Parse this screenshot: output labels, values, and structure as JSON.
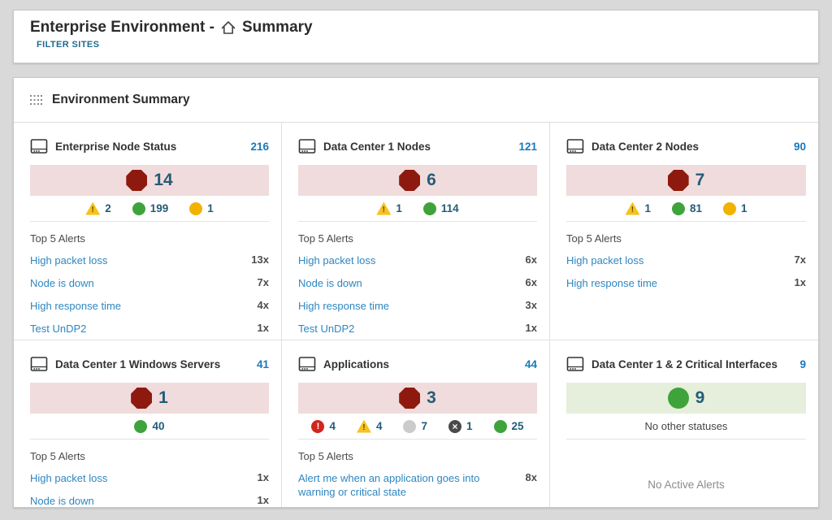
{
  "colors": {
    "accent_teal": "#1f6a8e",
    "total_blue": "#1878bc",
    "count_blue": "#235c77",
    "link_blue": "#2e86c1",
    "critical_red": "#8e1a0f",
    "band_pink": "#f0dcdc",
    "band_green": "#e5efdb",
    "status_green": "#3fa33c",
    "status_yellow": "#f2b200",
    "triangle_yellow": "#f6c21d",
    "status_red": "#d2261c",
    "status_gray": "#cbcbcb",
    "status_dark": "#4a4a4a"
  },
  "header": {
    "title_prefix": "Enterprise Environment -",
    "title_suffix": "Summary",
    "filter_sites_label": "FILTER SITES"
  },
  "panel": {
    "title": "Environment Summary"
  },
  "cards": [
    {
      "title": "Enterprise Node Status",
      "total": "216",
      "band_style": "critical",
      "main_status": {
        "icon": "octagon-down-icon",
        "count": "14"
      },
      "sub_statuses": [
        {
          "icon": "triangle-warning-icon",
          "count": "2"
        },
        {
          "icon": "circle-up-icon",
          "count": "199"
        },
        {
          "icon": "circle-external-icon",
          "count": "1"
        }
      ],
      "sub_status_text": "",
      "alerts_title": "Top 5 Alerts",
      "alerts": [
        {
          "label": "High packet loss",
          "count": "13x"
        },
        {
          "label": "Node is down",
          "count": "7x"
        },
        {
          "label": "High response time",
          "count": "4x"
        },
        {
          "label": "Test UnDP2",
          "count": "1x"
        }
      ],
      "footer_text": ""
    },
    {
      "title": "Data Center 1 Nodes",
      "total": "121",
      "band_style": "critical",
      "main_status": {
        "icon": "octagon-down-icon",
        "count": "6"
      },
      "sub_statuses": [
        {
          "icon": "triangle-warning-icon",
          "count": "1"
        },
        {
          "icon": "circle-up-icon",
          "count": "114"
        }
      ],
      "sub_status_text": "",
      "alerts_title": "Top 5 Alerts",
      "alerts": [
        {
          "label": "High packet loss",
          "count": "6x"
        },
        {
          "label": "Node is down",
          "count": "6x"
        },
        {
          "label": "High response time",
          "count": "3x"
        },
        {
          "label": "Test UnDP2",
          "count": "1x"
        }
      ],
      "footer_text": ""
    },
    {
      "title": "Data Center 2 Nodes",
      "total": "90",
      "band_style": "critical",
      "main_status": {
        "icon": "octagon-down-icon",
        "count": "7"
      },
      "sub_statuses": [
        {
          "icon": "triangle-warning-icon",
          "count": "1"
        },
        {
          "icon": "circle-up-icon",
          "count": "81"
        },
        {
          "icon": "circle-external-icon",
          "count": "1"
        }
      ],
      "sub_status_text": "",
      "alerts_title": "Top 5 Alerts",
      "alerts": [
        {
          "label": "High packet loss",
          "count": "7x"
        },
        {
          "label": "High response time",
          "count": "1x"
        }
      ],
      "footer_text": ""
    },
    {
      "title": "Data Center 1 Windows Servers",
      "total": "41",
      "band_style": "critical",
      "main_status": {
        "icon": "octagon-down-icon",
        "count": "1"
      },
      "sub_statuses": [
        {
          "icon": "circle-up-icon",
          "count": "40"
        }
      ],
      "sub_status_text": "",
      "alerts_title": "Top 5 Alerts",
      "alerts": [
        {
          "label": "High packet loss",
          "count": "1x"
        },
        {
          "label": "Node is down",
          "count": "1x"
        }
      ],
      "footer_text": ""
    },
    {
      "title": "Applications",
      "total": "44",
      "band_style": "critical",
      "main_status": {
        "icon": "octagon-down-icon",
        "count": "3"
      },
      "sub_statuses": [
        {
          "icon": "circle-critical-icon",
          "count": "4"
        },
        {
          "icon": "triangle-warning-icon",
          "count": "4"
        },
        {
          "icon": "circle-unknown-icon",
          "count": "7"
        },
        {
          "icon": "circle-down-icon",
          "count": "1"
        },
        {
          "icon": "circle-up-icon",
          "count": "25"
        }
      ],
      "sub_status_text": "",
      "alerts_title": "Top 5 Alerts",
      "alerts": [
        {
          "label": "Alert me when an application goes into warning or critical state",
          "count": "8x"
        }
      ],
      "footer_text": ""
    },
    {
      "title": "Data Center 1 & 2 Critical Interfaces",
      "total": "9",
      "band_style": "ok",
      "main_status": {
        "icon": "circle-up-big-icon",
        "count": "9"
      },
      "sub_statuses": [],
      "sub_status_text": "No other statuses",
      "alerts_title": "",
      "alerts": [],
      "footer_text": "No Active Alerts"
    }
  ]
}
